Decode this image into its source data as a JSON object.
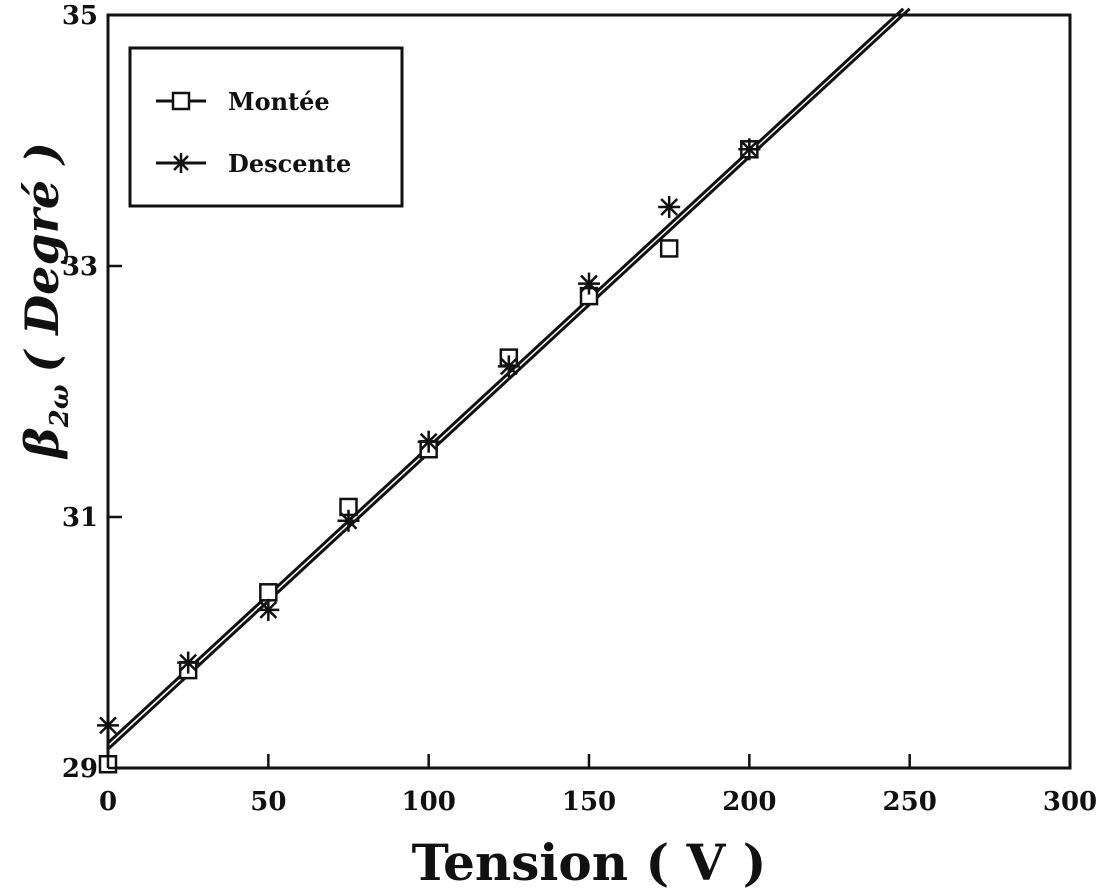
{
  "chart_data": {
    "type": "line",
    "title": "",
    "xlabel": "Tension ( V )",
    "ylabel_symbol": "β",
    "ylabel_subscript": "2ω",
    "ylabel_unit": "( Degré )",
    "xlim": [
      0,
      300
    ],
    "ylim": [
      29,
      35
    ],
    "xticks": [
      0,
      50,
      100,
      150,
      200,
      250,
      300
    ],
    "yticks": [
      29,
      31,
      33,
      35
    ],
    "grid": false,
    "legend_position": "top-left",
    "series": [
      {
        "name": "Montée",
        "marker": "square",
        "x": [
          0,
          25,
          50,
          75,
          100,
          125,
          150,
          175,
          200
        ],
        "y": [
          29.03,
          29.78,
          30.4,
          31.08,
          31.54,
          32.27,
          32.76,
          33.14,
          33.93
        ],
        "fit": [
          [
            0,
            29.15
          ],
          [
            250,
            35.05
          ]
        ]
      },
      {
        "name": "Descente",
        "marker": "asterisk",
        "x": [
          0,
          25,
          50,
          75,
          100,
          125,
          150,
          175,
          200
        ],
        "y": [
          29.34,
          29.84,
          30.26,
          30.97,
          31.6,
          32.2,
          32.86,
          33.47,
          33.93
        ],
        "fit": [
          [
            0,
            29.2
          ],
          [
            248,
            35.05
          ]
        ]
      }
    ]
  }
}
